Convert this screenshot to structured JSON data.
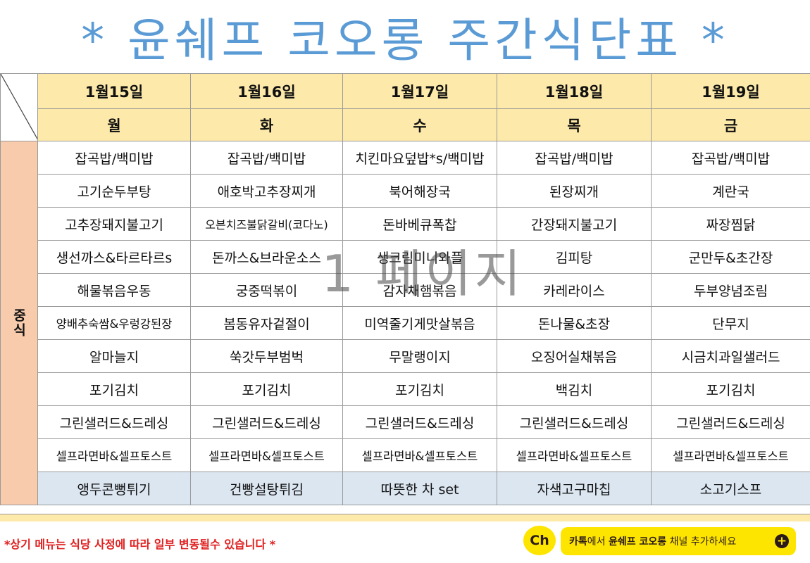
{
  "title": "* 윤쉐프 코오롱 주간식단표 *",
  "side_label": "중식",
  "dates": [
    "1월15일",
    "1월16일",
    "1월17일",
    "1월18일",
    "1월19일"
  ],
  "days": [
    "월",
    "화",
    "수",
    "목",
    "금"
  ],
  "menu_rows": [
    [
      "잡곡밥/백미밥",
      "잡곡밥/백미밥",
      "치킨마요덮밥*s/백미밥",
      "잡곡밥/백미밥",
      "잡곡밥/백미밥"
    ],
    [
      "고기순두부탕",
      "애호박고추장찌개",
      "북어해장국",
      "된장찌개",
      "계란국"
    ],
    [
      "고추장돼지불고기",
      "오븐치즈불닭갈비(코다노)",
      "돈바베큐폭찹",
      "간장돼지불고기",
      "짜장찜닭"
    ],
    [
      "생선까스&타르타르s",
      "돈까스&브라운소스",
      "생크림미니와플",
      "김피탕",
      "군만두&초간장"
    ],
    [
      "해물볶음우동",
      "궁중떡볶이",
      "감자채햄볶음",
      "카레라이스",
      "두부양념조림"
    ],
    [
      "양배추숙쌈&우렁강된장",
      "봄동유자겉절이",
      "미역줄기게맛살볶음",
      "돈나물&초장",
      "단무지"
    ],
    [
      "알마늘지",
      "쑥갓두부범벅",
      "무말랭이지",
      "오징어실채볶음",
      "시금치과일샐러드"
    ],
    [
      "포기김치",
      "포기김치",
      "포기김치",
      "백김치",
      "포기김치"
    ],
    [
      "그린샐러드&드레싱",
      "그린샐러드&드레싱",
      "그린샐러드&드레싱",
      "그린샐러드&드레싱",
      "그린샐러드&드레싱"
    ],
    [
      "셀프라면바&셀프토스트",
      "셀프라면바&셀프토스트",
      "셀프라면바&셀프토스트",
      "셀프라면바&셀프토스트",
      "셀프라면바&셀프토스트"
    ],
    [
      "앵두콘뻥튀기",
      "건빵설탕튀김",
      "따뜻한 차 set",
      "자색고구마칩",
      "소고기스프"
    ]
  ],
  "watermark": "1 페이지",
  "notice": "*상기 메뉴는 식당 사정에 따라 일부 변동될수 있습니다 *",
  "kakao": {
    "logo": "Ch",
    "part1": "카톡",
    "part2": "에서 ",
    "part3": "윤쉐프 코오롱",
    "part4": " 채널 추가하세요",
    "plus": "+"
  },
  "colors": {
    "title": "#5b9bd5",
    "header_bg": "#fde9a9",
    "side_bg": "#f8cbad",
    "dessert_bg": "#dce6f1",
    "red": "#e02020",
    "blue": "#1f73c8",
    "green": "#1a9a2a",
    "orange": "#e07010",
    "kakao_yellow": "#fee500"
  }
}
